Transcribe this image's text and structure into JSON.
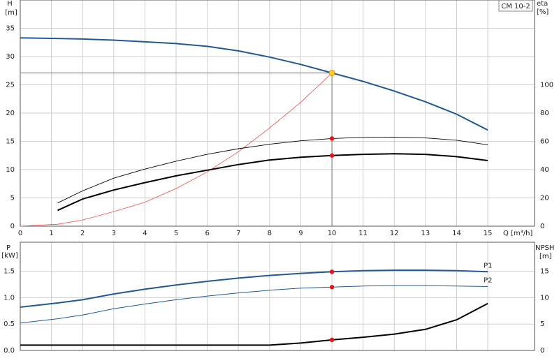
{
  "chart_data": [
    {
      "type": "line",
      "model": "CM 10-2",
      "y_label": "H",
      "y_unit": "[m]",
      "y2_label": "eta",
      "y2_unit": "[%]",
      "x_label": "Q [m³/h]",
      "x": [
        0,
        1.2,
        2,
        3,
        4,
        5,
        6,
        7,
        8,
        9,
        10,
        11,
        12,
        13,
        14,
        15
      ],
      "xlim": [
        0,
        16.5
      ],
      "xticks": [
        0,
        1,
        2,
        3,
        4,
        5,
        6,
        7,
        8,
        9,
        10,
        11,
        12,
        13,
        14,
        15
      ],
      "ylim": [
        0,
        40
      ],
      "yticks": [
        0,
        5,
        10,
        15,
        20,
        25,
        30,
        35
      ],
      "y2lim": [
        0,
        160
      ],
      "y2ticks": [
        0,
        20,
        40,
        60,
        80,
        100
      ],
      "grid": true,
      "duty_point": {
        "x": 10,
        "y": 27.1
      },
      "series": [
        {
          "color": "#1f5a96",
          "line_width": 2,
          "values": [
            33.3,
            33.2,
            33.1,
            32.9,
            32.6,
            32.3,
            31.8,
            31.0,
            29.9,
            28.6,
            27.1,
            25.6,
            23.9,
            22.0,
            19.8,
            17.0
          ]
        },
        {
          "color": "#ff4a4a",
          "line_width": 0.8,
          "axis": "y2",
          "values": [
            0,
            1.4,
            4.4,
            10.3,
            17,
            26.6,
            38.4,
            52.7,
            69.5,
            87.7,
            108.4,
            null,
            null,
            null,
            null,
            null
          ]
        },
        {
          "color": "#000000",
          "line_width": 0.9,
          "axis": "y2",
          "values": [
            null,
            16.4,
            25,
            34,
            40.4,
            46,
            50.8,
            54.8,
            58,
            60.4,
            62,
            62.8,
            63,
            62.4,
            60.8,
            57.6
          ]
        },
        {
          "color": "#000000",
          "line_width": 2,
          "axis": "y2",
          "values": [
            null,
            11.2,
            19.2,
            25.6,
            30.8,
            35.6,
            39.6,
            43.6,
            46.8,
            48.8,
            50,
            50.8,
            51.2,
            50.8,
            49.2,
            46.4
          ]
        }
      ]
    },
    {
      "type": "line",
      "y_label": "P",
      "y_unit": "[kW]",
      "y2_label": "NPSH",
      "y2_unit": "[m]",
      "x": [
        0,
        1.2,
        2,
        3,
        4,
        5,
        6,
        7,
        8,
        9,
        10,
        11,
        12,
        13,
        14,
        15
      ],
      "xlim": [
        0,
        16.5
      ],
      "ylim": [
        0,
        2.05
      ],
      "yticks": [
        {
          "value": 0,
          "label": "0.0"
        },
        0.5,
        {
          "value": 1,
          "label": "1.0"
        },
        1.5
      ],
      "y2lim": [
        0,
        20.5
      ],
      "y2ticks": [
        0,
        5,
        10,
        15
      ],
      "grid": true,
      "series": [
        {
          "name": "P1",
          "color": "#1f5a96",
          "line_width": 2,
          "values": [
            0.82,
            0.9,
            0.96,
            1.07,
            1.16,
            1.24,
            1.31,
            1.37,
            1.42,
            1.46,
            1.49,
            1.51,
            1.52,
            1.52,
            1.51,
            1.49
          ]
        },
        {
          "name": "P2",
          "color": "#1f5a96",
          "line_width": 1,
          "values": [
            0.52,
            0.6,
            0.67,
            0.79,
            0.88,
            0.96,
            1.03,
            1.09,
            1.14,
            1.18,
            1.2,
            1.22,
            1.23,
            1.23,
            1.22,
            1.21
          ]
        },
        {
          "color": "#000000",
          "line_width": 2,
          "axis": "y2",
          "values": [
            1.0,
            1.0,
            1.0,
            1.0,
            1.0,
            1.0,
            1.0,
            1.0,
            1.0,
            1.4,
            2.0,
            2.5,
            3.1,
            4.0,
            5.8,
            8.9
          ]
        }
      ]
    }
  ]
}
